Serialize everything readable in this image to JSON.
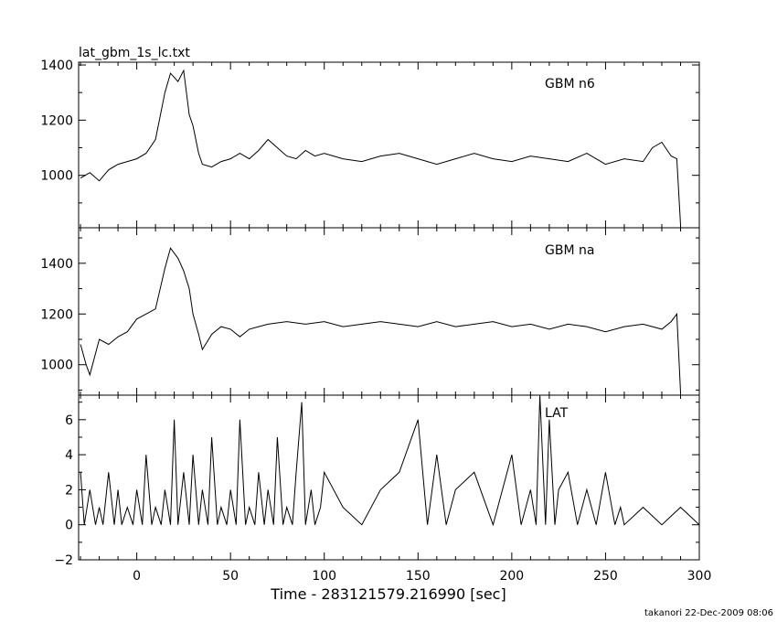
{
  "figure": {
    "title": "lat_gbm_1s_lc.txt",
    "xlabel": "Time - 283121579.216990 [sec]",
    "footer": "takanori 22-Dec-2009 08:06"
  },
  "chart_data": [
    {
      "type": "line",
      "panel": "top",
      "label": "GBM n6",
      "xlim": [
        -31,
        300
      ],
      "ylim": [
        810,
        1410
      ],
      "ytick_labels": [
        "1000",
        "1200",
        "1400"
      ],
      "yticks": [
        1000,
        1200,
        1400
      ],
      "minor_ystep": 100,
      "x": [
        -30,
        -25,
        -20,
        -15,
        -10,
        -5,
        0,
        5,
        10,
        15,
        18,
        22,
        25,
        28,
        30,
        33,
        35,
        40,
        45,
        50,
        55,
        60,
        65,
        70,
        75,
        80,
        85,
        90,
        95,
        100,
        110,
        120,
        130,
        140,
        150,
        160,
        170,
        180,
        190,
        200,
        210,
        220,
        230,
        240,
        250,
        260,
        270,
        275,
        280,
        285,
        288,
        290
      ],
      "values": [
        990,
        1010,
        980,
        1020,
        1040,
        1050,
        1060,
        1080,
        1130,
        1300,
        1370,
        1340,
        1380,
        1220,
        1180,
        1080,
        1040,
        1030,
        1050,
        1060,
        1080,
        1060,
        1090,
        1130,
        1100,
        1070,
        1060,
        1090,
        1070,
        1080,
        1060,
        1050,
        1070,
        1080,
        1060,
        1040,
        1060,
        1080,
        1060,
        1050,
        1070,
        1060,
        1050,
        1080,
        1040,
        1060,
        1050,
        1100,
        1120,
        1070,
        1060,
        820
      ]
    },
    {
      "type": "line",
      "panel": "middle",
      "label": "GBM na",
      "xlim": [
        -31,
        300
      ],
      "ylim": [
        880,
        1540
      ],
      "ytick_labels": [
        "1000",
        "1200",
        "1400"
      ],
      "yticks": [
        1000,
        1200,
        1400
      ],
      "minor_ystep": 100,
      "x": [
        -30,
        -27,
        -25,
        -20,
        -15,
        -10,
        -5,
        0,
        5,
        10,
        15,
        18,
        22,
        25,
        28,
        30,
        33,
        35,
        40,
        45,
        50,
        55,
        60,
        65,
        70,
        80,
        90,
        100,
        110,
        120,
        130,
        140,
        150,
        160,
        170,
        180,
        190,
        200,
        210,
        220,
        230,
        240,
        250,
        260,
        270,
        280,
        285,
        288,
        290
      ],
      "values": [
        1080,
        1000,
        960,
        1100,
        1080,
        1110,
        1130,
        1180,
        1200,
        1220,
        1380,
        1460,
        1420,
        1370,
        1300,
        1200,
        1120,
        1060,
        1120,
        1150,
        1140,
        1110,
        1140,
        1150,
        1160,
        1170,
        1160,
        1170,
        1150,
        1160,
        1170,
        1160,
        1150,
        1170,
        1150,
        1160,
        1170,
        1150,
        1160,
        1140,
        1160,
        1150,
        1130,
        1150,
        1160,
        1140,
        1170,
        1200,
        890
      ]
    },
    {
      "type": "line",
      "panel": "bottom",
      "label": "LAT",
      "xlim": [
        -31,
        300
      ],
      "ylim": [
        -2,
        7.4
      ],
      "ytick_labels": [
        "−2",
        "0",
        "2",
        "4",
        "6"
      ],
      "yticks": [
        -2,
        0,
        2,
        4,
        6
      ],
      "minor_ystep": 1,
      "x": [
        -30,
        -28,
        -25,
        -22,
        -20,
        -18,
        -15,
        -12,
        -10,
        -8,
        -5,
        -2,
        0,
        3,
        5,
        8,
        10,
        13,
        15,
        18,
        20,
        22,
        25,
        28,
        30,
        33,
        35,
        38,
        40,
        43,
        45,
        48,
        50,
        53,
        55,
        58,
        60,
        63,
        65,
        68,
        70,
        73,
        75,
        78,
        80,
        83,
        85,
        88,
        90,
        93,
        95,
        98,
        100,
        110,
        120,
        130,
        140,
        150,
        155,
        160,
        165,
        170,
        180,
        190,
        200,
        205,
        210,
        213,
        215,
        218,
        220,
        223,
        225,
        230,
        235,
        240,
        245,
        250,
        255,
        258,
        260,
        270,
        280,
        290,
        300
      ],
      "values": [
        3,
        0,
        2,
        0,
        1,
        0,
        3,
        0,
        2,
        0,
        1,
        0,
        2,
        0,
        4,
        0,
        1,
        0,
        2,
        0,
        6,
        0,
        3,
        0,
        4,
        0,
        2,
        0,
        5,
        0,
        1,
        0,
        2,
        0,
        6,
        0,
        1,
        0,
        3,
        0,
        2,
        0,
        5,
        0,
        1,
        0,
        3,
        7,
        0,
        2,
        0,
        1,
        3,
        1,
        0,
        2,
        3,
        6,
        0,
        4,
        0,
        2,
        3,
        0,
        4,
        0,
        2,
        0,
        8,
        0,
        6,
        0,
        2,
        3,
        0,
        2,
        0,
        3,
        0,
        1,
        0,
        1,
        0,
        1,
        0
      ]
    }
  ],
  "x_axis": {
    "ticks": [
      0,
      50,
      100,
      150,
      200,
      250,
      300
    ],
    "tick_labels": [
      "0",
      "50",
      "100",
      "150",
      "200",
      "250",
      "300"
    ]
  }
}
